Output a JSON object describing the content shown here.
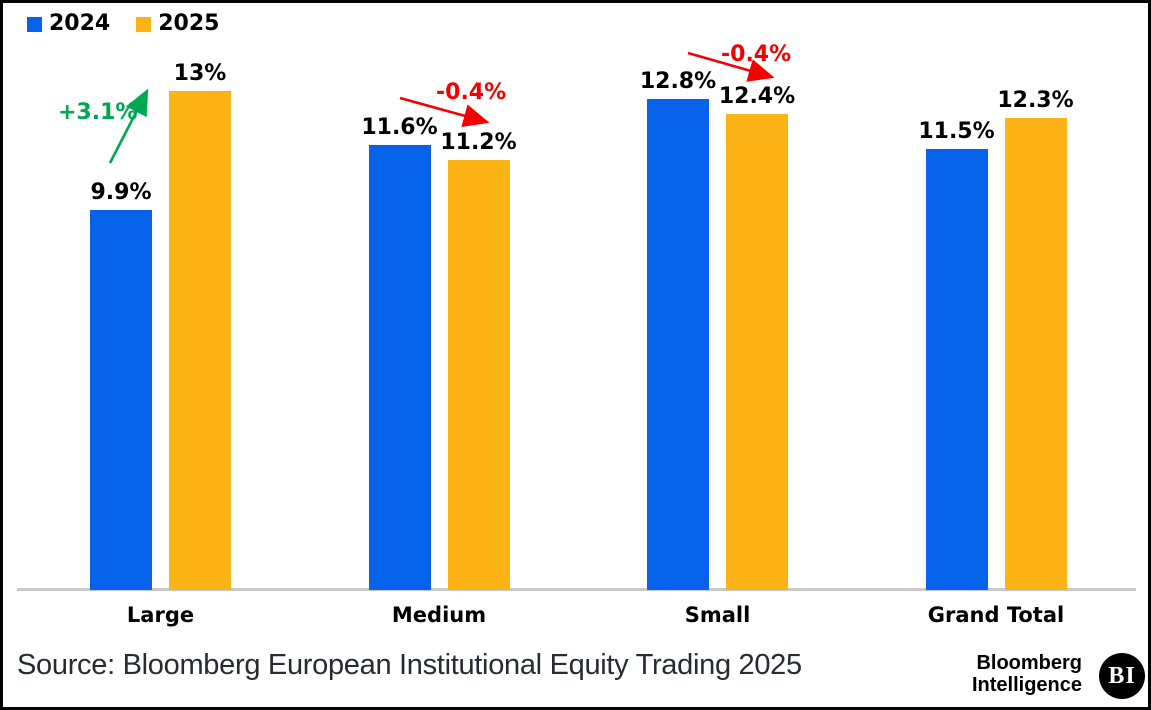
{
  "chart_data": {
    "type": "bar",
    "title": "",
    "categories": [
      "Large",
      "Medium",
      "Small",
      "Grand Total"
    ],
    "series": [
      {
        "name": "2024",
        "color": "#0562E9",
        "values": [
          9.9,
          11.6,
          12.8,
          11.5
        ],
        "labels": [
          "9.9%",
          "11.6%",
          "12.8%",
          "11.5%"
        ]
      },
      {
        "name": "2025",
        "color": "#FBB316",
        "values": [
          13,
          11.2,
          12.4,
          12.3
        ],
        "labels": [
          "13%",
          "11.2%",
          "12.4%",
          "12.3%"
        ]
      }
    ],
    "ylim": [
      0,
      13
    ],
    "value_format": "percent",
    "grid": false,
    "y_axis_visible": false,
    "legend_position": "top-left",
    "annotations": [
      {
        "category": "Large",
        "text": "+3.1%",
        "color": "#00A651",
        "direction": "up"
      },
      {
        "category": "Medium",
        "text": "-0.4%",
        "color": "#F40000",
        "direction": "down"
      },
      {
        "category": "Small",
        "text": "-0.4%",
        "color": "#F40000",
        "direction": "down"
      }
    ]
  },
  "footer": {
    "source": "Source: Bloomberg European Institutional Equity Trading 2025",
    "brand": {
      "line1": "Bloomberg",
      "line2": "Intelligence",
      "badge": "BI"
    }
  }
}
